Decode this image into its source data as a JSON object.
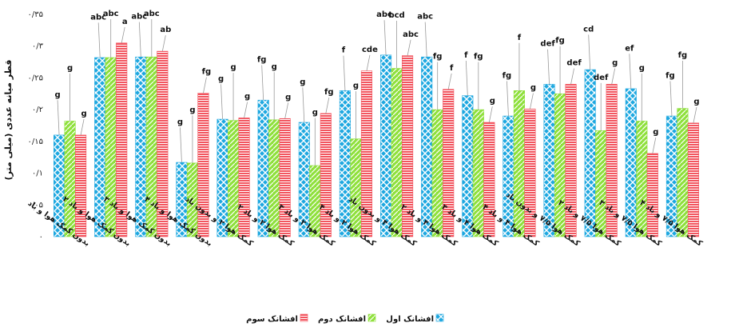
{
  "chart_data": {
    "type": "bar",
    "ylabel": "قطر میانه عددی (میلی متر)",
    "ylim": [
      0,
      0.35
    ],
    "yticks": [
      "۰",
      "۰/۰۵",
      "۰/۱",
      "۰/۱۵",
      "۰/۲",
      "۰/۲۵",
      "۰/۳",
      "۰/۳۵"
    ],
    "categories": [
      "بدون کمک هوا و باد",
      "بدون کمک هوا و باد ۲",
      "بدون کمک هوا و باد ۳",
      "بدون کمک هوا و باد ۴",
      "کمک هوا ۲ و بدون باد",
      "کمک هوا ۲ و باد ۲",
      "کمک هوا ۲ و باد ۳",
      "کمک هوا ۲ و باد ۴",
      "کمک هوا ۴ و بدون باد",
      "کمک هوا ۴ و باد ۲",
      "کمک هوا ۴ و باد ۳",
      "کمک هوا ۴ و باد ۴",
      "کمک هوا ۷/۵ و بدون باد",
      "کمک هوا ۷/۵ و باد ۲",
      "کمک هوا ۷/۵ و باد ۳",
      "کمک هوا ۷/۵ و باد ۴"
    ],
    "series": [
      {
        "name": "افشانک اول",
        "color": "#1fa8e0",
        "values": [
          0.16,
          0.282,
          0.283,
          0.117,
          0.185,
          0.215,
          0.18,
          0.23,
          0.286,
          0.283,
          0.222,
          0.19,
          0.24,
          0.263,
          0.233,
          0.19
        ]
      },
      {
        "name": "افشانک دوم",
        "color": "#8fe03c",
        "values": [
          0.182,
          0.282,
          0.283,
          0.116,
          0.183,
          0.184,
          0.112,
          0.154,
          0.265,
          0.2,
          0.2,
          0.23,
          0.225,
          0.167,
          0.182,
          0.202
        ]
      },
      {
        "name": "افشانک سوم",
        "color": "#f2555f",
        "values": [
          0.16,
          0.305,
          0.292,
          0.226,
          0.187,
          0.186,
          0.194,
          0.261,
          0.285,
          0.232,
          0.18,
          0.201,
          0.24,
          0.24,
          0.131,
          0.179
        ]
      }
    ],
    "letters": [
      [
        "g",
        "g",
        "g"
      ],
      [
        "abc",
        "abc",
        "a"
      ],
      [
        "abc",
        "abc",
        "ab"
      ],
      [
        "g",
        "g",
        "fg"
      ],
      [
        "g",
        "g",
        "g"
      ],
      [
        "fg",
        "g",
        "g"
      ],
      [
        "g",
        "g",
        "fg"
      ],
      [
        "f",
        "g",
        "cde"
      ],
      [
        "abc",
        "bcd",
        "abc"
      ],
      [
        "abc",
        "fg",
        "f"
      ],
      [
        "f",
        "fg",
        "g"
      ],
      [
        "fg",
        "f",
        "g"
      ],
      [
        "def",
        "fg",
        "def"
      ],
      [
        "cd",
        "def",
        "g"
      ],
      [
        "ef",
        "g",
        "g"
      ],
      [
        "fg",
        "fg",
        "g"
      ]
    ],
    "legend_position": "bottom-center",
    "grid": false
  }
}
